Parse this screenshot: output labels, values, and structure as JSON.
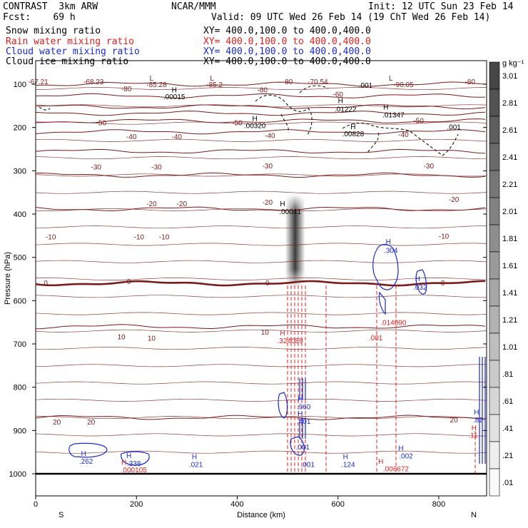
{
  "header": {
    "left1": "CONTRAST  3km ARW",
    "center1": "NCAR/MMM",
    "right1": "Init: 12 UTC Sun 23 Feb 14",
    "fcst": "Fcst:    69 h",
    "valid": "Valid: 09 UTC Wed 26 Feb 14 (19 ChT Wed 26 Feb 14)",
    "fields": [
      {
        "name": "Snow mixing ratio",
        "xy": "XY= 400.0,100.0 to 400.0,400.0",
        "color": "#000000"
      },
      {
        "name": "Rain water mixing ratio",
        "xy": "XY= 400.0,100.0 to 400.0,400.0",
        "color": "#e02020"
      },
      {
        "name": "Cloud water mixing ratio",
        "xy": "XY= 400.0,100.0 to 400.0,400.0",
        "color": "#1a2bd0"
      },
      {
        "name": "Cloud ice mixing ratio",
        "xy": "XY= 400.0,100.0 to 400.0,400.0",
        "color": "#000000"
      }
    ]
  },
  "colors": {
    "temp": "#7a1c1c",
    "rain": "#e02020",
    "cloud": "#1a2bd0",
    "ice": "#000000"
  },
  "chart_data": {
    "type": "cross-section",
    "title": "Snow, rain water, cloud water and cloud ice mixing ratio",
    "xlabel": "Distance (km)",
    "ylabel": "Pressure (hPa)",
    "xlim": [
      0,
      895
    ],
    "ylim": [
      1000,
      50
    ],
    "x_ticks": [
      0,
      200,
      400,
      600,
      800
    ],
    "y_ticks": [
      100,
      200,
      300,
      400,
      500,
      600,
      700,
      800,
      900,
      1000
    ],
    "x_end_labels": {
      "left": "S",
      "right": "N"
    },
    "colorbar": {
      "unit": "g kg⁻¹",
      "labels": [
        "3.01",
        "2.81",
        "2.61",
        "2.41",
        "2.21",
        "2.01",
        "1.81",
        "1.61",
        "1.41",
        "1.21",
        "1.01",
        ".81",
        ".61",
        ".41",
        ".21",
        ".01"
      ]
    },
    "isotherm_levels": [
      -90,
      -80,
      -70,
      -60,
      -50,
      -40,
      -30,
      -20,
      -10,
      0,
      10,
      20
    ],
    "isotherms": [
      {
        "label": "-90",
        "p": 100
      },
      {
        "label": "-80",
        "p": 127
      },
      {
        "label": "-70",
        "p": 152
      },
      {
        "label": "-60",
        "p": 167
      },
      {
        "label": "-50",
        "p": 185
      },
      {
        "label": "-40",
        "p": 210
      },
      {
        "label": "-30",
        "p": 255
      },
      {
        "label": "-20",
        "p": 310
      },
      {
        "label": "-10",
        "p": 388
      },
      {
        "label": "0",
        "p": 560,
        "bold": true
      },
      {
        "label": "10",
        "p": 660
      },
      {
        "label": "20",
        "p": 870
      }
    ],
    "temp_labels": [
      {
        "text": "-67.21",
        "x": 5,
        "p": 93
      },
      {
        "text": "-68.23",
        "x": 115,
        "p": 93
      },
      {
        "text": "-85.28",
        "x": 240,
        "p": 100
      },
      {
        "text": "-85.2",
        "x": 355,
        "p": 100
      },
      {
        "text": "-70.54",
        "x": 560,
        "p": 93
      },
      {
        "text": "-90.05",
        "x": 730,
        "p": 100
      },
      {
        "text": "-80",
        "x": 180,
        "p": 110
      },
      {
        "text": "-80",
        "x": 450,
        "p": 112
      },
      {
        "text": "-80",
        "x": 500,
        "p": 93
      },
      {
        "text": "-80",
        "x": 862,
        "p": 93
      },
      {
        "text": "-60",
        "x": 600,
        "p": 122
      },
      {
        "text": "-50",
        "x": 130,
        "p": 188
      },
      {
        "text": "-50",
        "x": 400,
        "p": 188
      },
      {
        "text": "-50",
        "x": 760,
        "p": 183
      },
      {
        "text": "-40",
        "x": 190,
        "p": 220
      },
      {
        "text": "-40",
        "x": 280,
        "p": 220
      },
      {
        "text": "-40",
        "x": 465,
        "p": 218
      },
      {
        "text": "-40",
        "x": 730,
        "p": 215
      },
      {
        "text": "-30",
        "x": 120,
        "p": 290
      },
      {
        "text": "-30",
        "x": 240,
        "p": 290
      },
      {
        "text": "-30",
        "x": 460,
        "p": 288
      },
      {
        "text": "-30",
        "x": 780,
        "p": 288
      },
      {
        "text": "-20",
        "x": 230,
        "p": 375
      },
      {
        "text": "-20",
        "x": 290,
        "p": 375
      },
      {
        "text": "-20",
        "x": 460,
        "p": 372
      },
      {
        "text": "-20",
        "x": 830,
        "p": 365
      },
      {
        "text": "-10",
        "x": 30,
        "p": 452
      },
      {
        "text": "-10",
        "x": 205,
        "p": 452
      },
      {
        "text": "-10",
        "x": 255,
        "p": 452
      },
      {
        "text": "-10",
        "x": 810,
        "p": 450
      },
      {
        "text": "0",
        "x": 20,
        "p": 558
      },
      {
        "text": "0",
        "x": 185,
        "p": 555
      },
      {
        "text": "0",
        "x": 460,
        "p": 558
      },
      {
        "text": "0",
        "x": 808,
        "p": 558
      },
      {
        "text": "10",
        "x": 170,
        "p": 683
      },
      {
        "text": "10",
        "x": 230,
        "p": 686
      },
      {
        "text": "10",
        "x": 455,
        "p": 672
      },
      {
        "text": "20",
        "x": 42,
        "p": 880
      },
      {
        "text": "20",
        "x": 110,
        "p": 880
      },
      {
        "text": "20",
        "x": 830,
        "p": 875
      }
    ],
    "snow_core": {
      "x": 515,
      "p_top": 355,
      "p_bottom": 570,
      "max": 0.9
    },
    "markers": [
      {
        "text": "L",
        "x": 230,
        "p": 85,
        "color": "#7a1c1c"
      },
      {
        "text": "L",
        "x": 350,
        "p": 85,
        "color": "#7a1c1c"
      },
      {
        "text": "L",
        "x": 705,
        "p": 85,
        "color": "#7a1c1c"
      },
      {
        "text": "H",
        "x": 275,
        "p": 112,
        "color": "#000000"
      },
      {
        "text": ".00015",
        "x": 275,
        "p": 128,
        "color": "#000000"
      },
      {
        "text": ".001",
        "x": 655,
        "p": 102,
        "color": "#000000"
      },
      {
        "text": "H",
        "x": 605,
        "p": 137,
        "color": "#000000"
      },
      {
        "text": ".01222",
        "x": 615,
        "p": 157,
        "color": "#000000"
      },
      {
        "text": "H",
        "x": 695,
        "p": 152,
        "color": "#000000"
      },
      {
        "text": ".01347",
        "x": 710,
        "p": 170,
        "color": "#000000"
      },
      {
        "text": "H",
        "x": 435,
        "p": 178,
        "color": "#000000"
      },
      {
        "text": ".00320",
        "x": 435,
        "p": 195,
        "color": "#000000"
      },
      {
        "text": "H",
        "x": 630,
        "p": 197,
        "color": "#000000"
      },
      {
        "text": ".00828",
        "x": 630,
        "p": 214,
        "color": "#000000"
      },
      {
        "text": ".001",
        "x": 830,
        "p": 198,
        "color": "#000000"
      },
      {
        "text": "H",
        "x": 490,
        "p": 375,
        "color": "#000000"
      },
      {
        "text": ".00041",
        "x": 505,
        "p": 393,
        "color": "#000000"
      },
      {
        "text": "H",
        "x": 700,
        "p": 463,
        "color": "#1a2bd0"
      },
      {
        "text": ".304",
        "x": 705,
        "p": 483,
        "color": "#1a2bd0"
      },
      {
        "text": "H",
        "x": 758,
        "p": 548,
        "color": "#1a2bd0"
      },
      {
        "text": ".032",
        "x": 763,
        "p": 568,
        "color": "#1a2bd0"
      },
      {
        "text": ".014090",
        "x": 710,
        "p": 650,
        "color": "#e02020"
      },
      {
        "text": "H",
        "x": 490,
        "p": 674,
        "color": "#e02020"
      },
      {
        "text": ".324089",
        "x": 505,
        "p": 692,
        "color": "#e02020"
      },
      {
        "text": ".001",
        "x": 675,
        "p": 685,
        "color": "#e02020"
      },
      {
        "text": "H",
        "x": 525,
        "p": 826,
        "color": "#1a2bd0"
      },
      {
        "text": ".960",
        "x": 532,
        "p": 844,
        "color": "#1a2bd0"
      },
      {
        "text": "H",
        "x": 525,
        "p": 860,
        "color": "#1a2bd0"
      },
      {
        "text": ".401",
        "x": 532,
        "p": 878,
        "color": "#1a2bd0"
      },
      {
        "text": "H",
        "x": 875,
        "p": 857,
        "color": "#1a2bd0"
      },
      {
        "text": ".82",
        "x": 878,
        "p": 875,
        "color": "#1a2bd0"
      },
      {
        "text": "H",
        "x": 870,
        "p": 893,
        "color": "#e02020"
      },
      {
        "text": ".11",
        "x": 868,
        "p": 910,
        "color": "#e02020"
      },
      {
        "text": ".001",
        "x": 530,
        "p": 937,
        "color": "#1a2bd0"
      },
      {
        "text": "H",
        "x": 95,
        "p": 952,
        "color": "#1a2bd0"
      },
      {
        "text": ".262",
        "x": 100,
        "p": 970,
        "color": "#1a2bd0"
      },
      {
        "text": "H",
        "x": 185,
        "p": 957,
        "color": "#1a2bd0"
      },
      {
        "text": ".338",
        "x": 195,
        "p": 975,
        "color": "#1a2bd0"
      },
      {
        "text": "H",
        "x": 175,
        "p": 973,
        "color": "#e02020"
      },
      {
        "text": ".000105",
        "x": 195,
        "p": 990,
        "color": "#e02020"
      },
      {
        "text": "H",
        "x": 315,
        "p": 960,
        "color": "#1a2bd0"
      },
      {
        "text": ".021",
        "x": 318,
        "p": 978,
        "color": "#1a2bd0"
      },
      {
        "text": ".001",
        "x": 540,
        "p": 978,
        "color": "#1a2bd0"
      },
      {
        "text": "H",
        "x": 615,
        "p": 960,
        "color": "#1a2bd0"
      },
      {
        "text": ".124",
        "x": 620,
        "p": 978,
        "color": "#1a2bd0"
      },
      {
        "text": "H",
        "x": 725,
        "p": 940,
        "color": "#1a2bd0"
      },
      {
        "text": ".002",
        "x": 735,
        "p": 958,
        "color": "#1a2bd0"
      },
      {
        "text": "H",
        "x": 685,
        "p": 970,
        "color": "#e02020"
      },
      {
        "text": ".006672",
        "x": 715,
        "p": 988,
        "color": "#e02020"
      }
    ]
  }
}
